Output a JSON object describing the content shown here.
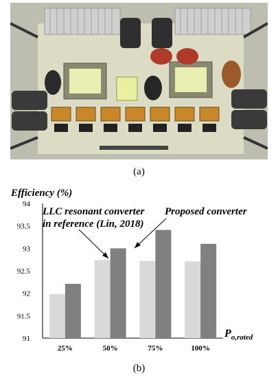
{
  "figure": {
    "caption_a": "(a)",
    "caption_b": "(b)",
    "photo_description": "Photograph of a power converter prototype board"
  },
  "colors": {
    "ref_bar": "#d9d9d9",
    "proposed_bar": "#808080",
    "board": "#dcdcc4",
    "heatsink": "#cfcfcf"
  },
  "chart_data": {
    "type": "bar",
    "ylabel_text": "Efficiency (%)",
    "xlabel_main": "P",
    "xlabel_sub": "o,rated",
    "categories": [
      "25%",
      "50%",
      "75%",
      "100%"
    ],
    "yticks": [
      "91",
      "91.5",
      "92",
      "92.5",
      "93",
      "93.5",
      "94"
    ],
    "ylim": [
      91,
      94
    ],
    "grid": false,
    "series": [
      {
        "name": "LLC resonant converter in reference (Lin, 2018)",
        "values": [
          91.98,
          92.74,
          92.72,
          92.71
        ]
      },
      {
        "name": "Proposed converter",
        "values": [
          92.21,
          93.0,
          93.41,
          93.1
        ]
      }
    ],
    "annotations": {
      "ref_line1": "LLC resonant converter",
      "ref_line2": "in reference (Lin, 2018)",
      "proposed": "Proposed converter"
    }
  }
}
